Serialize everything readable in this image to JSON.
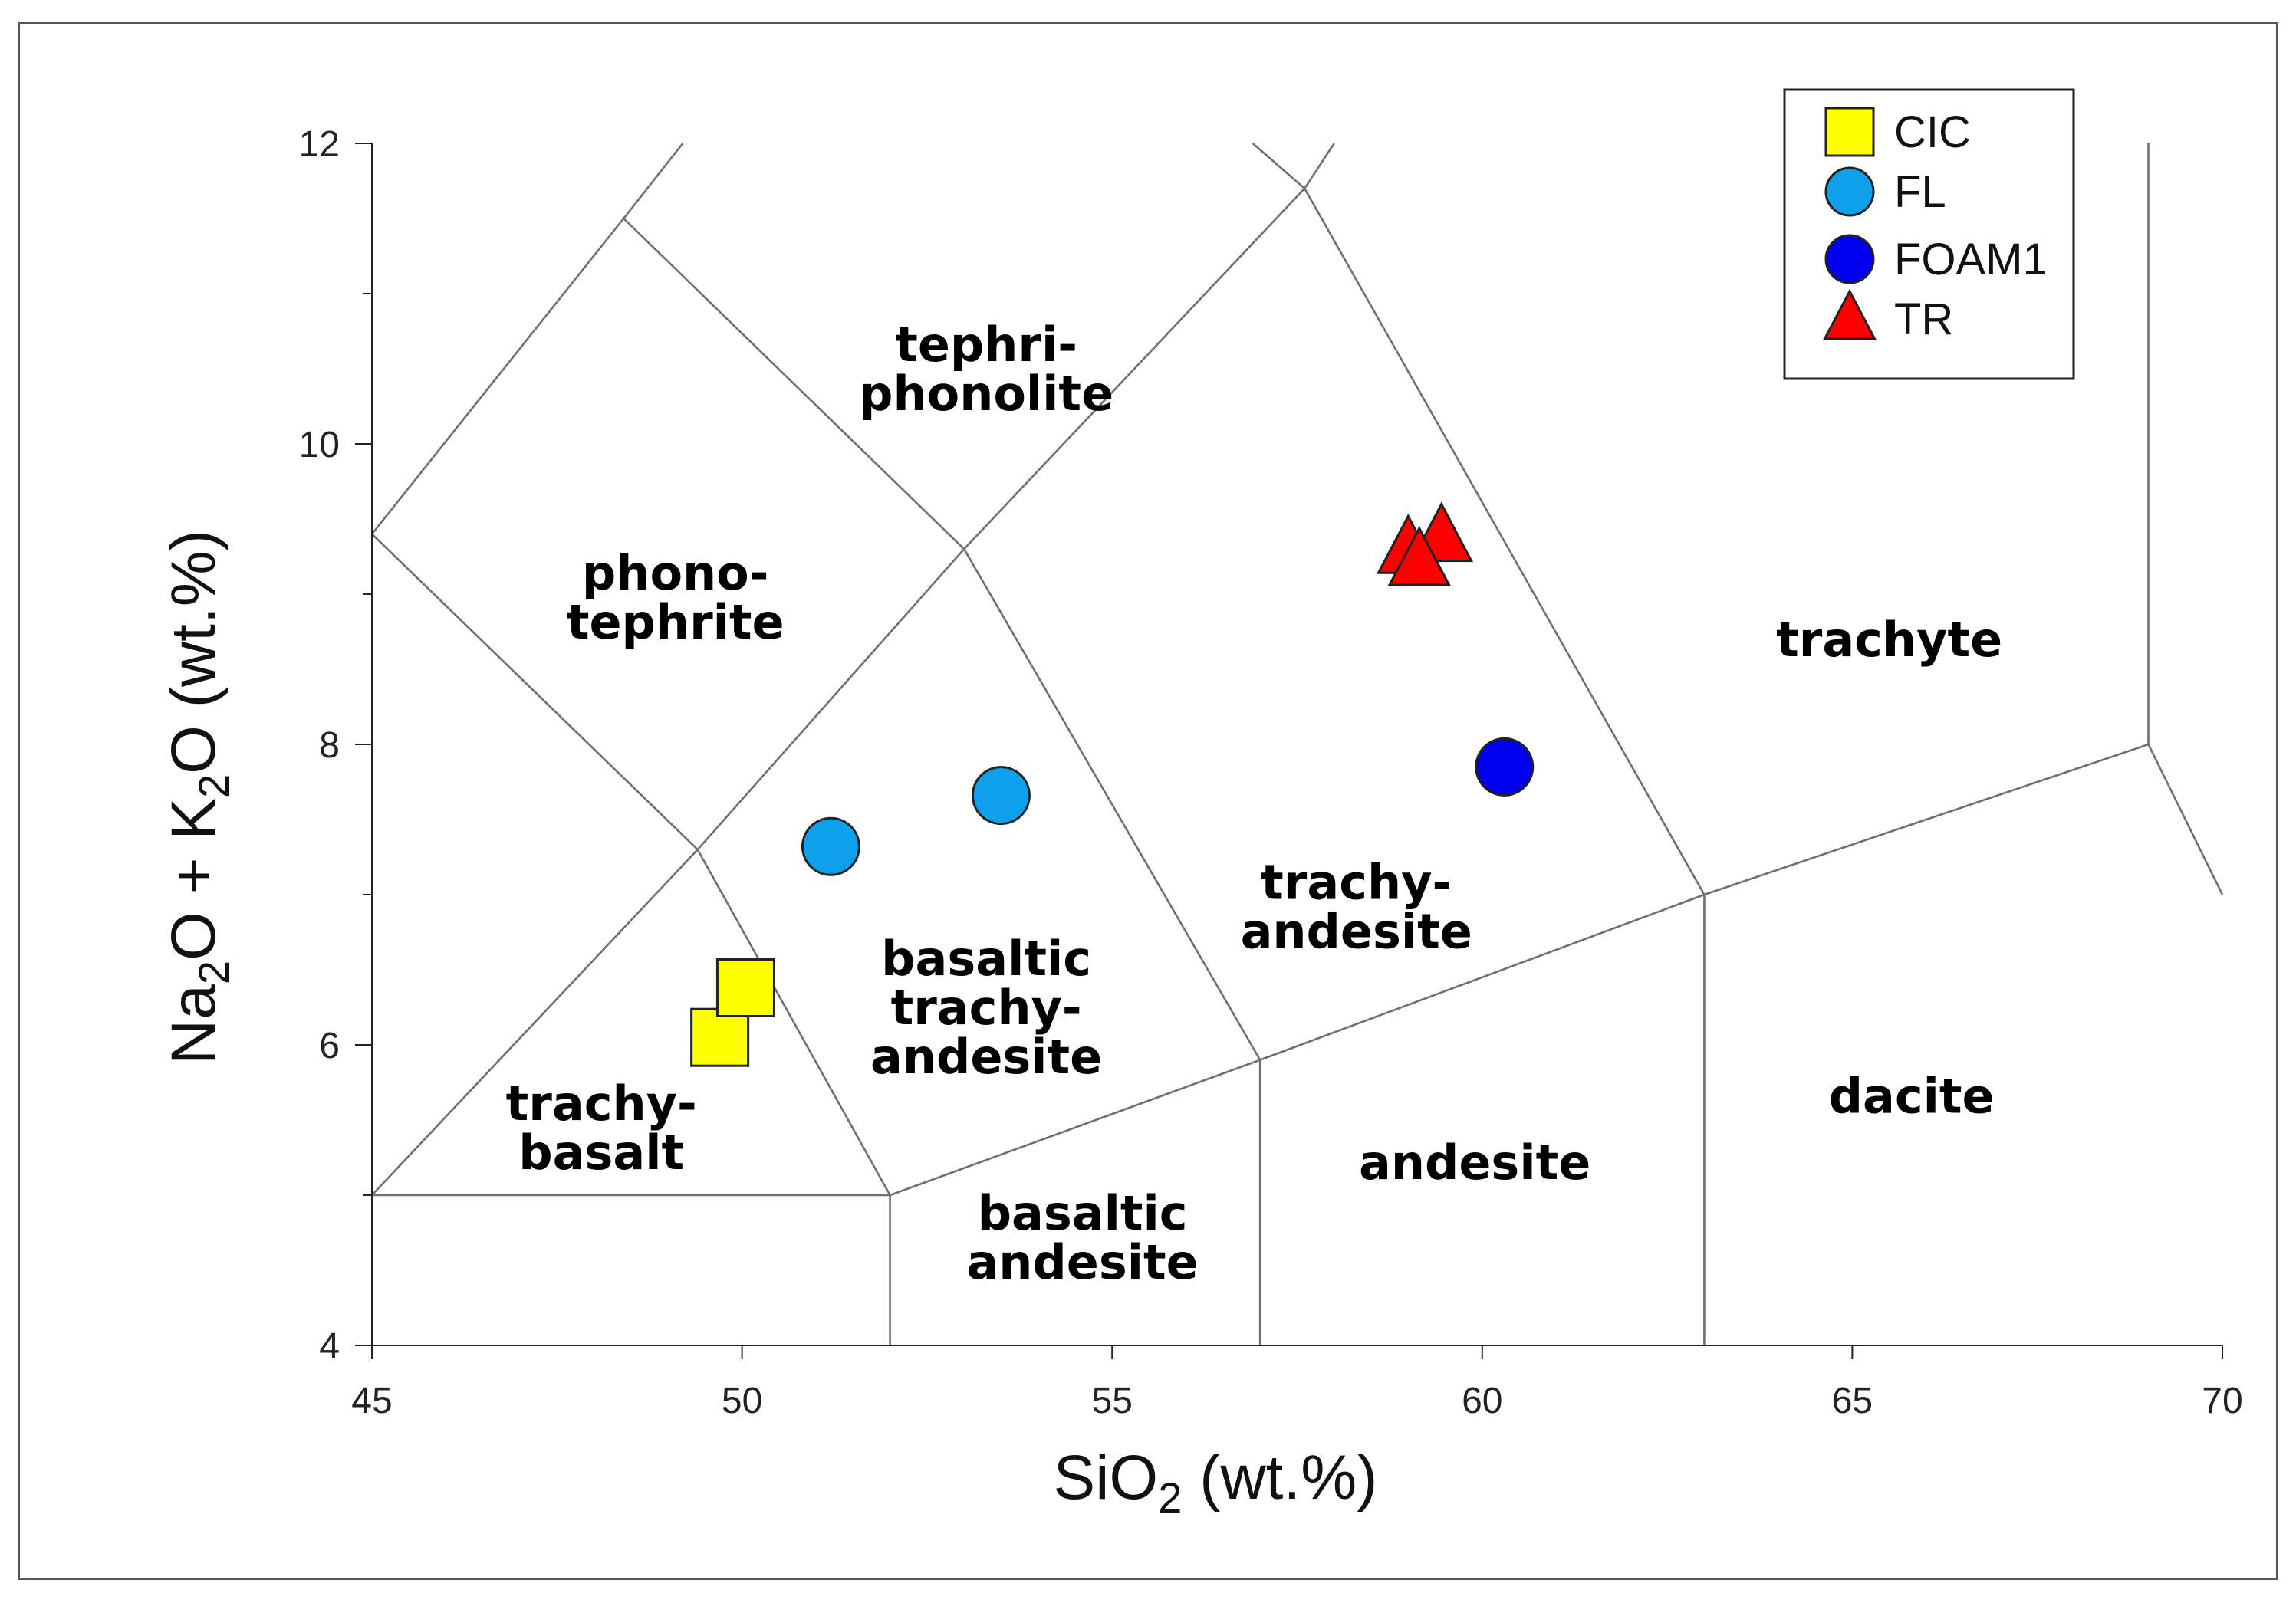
{
  "chart_data": {
    "type": "scatter",
    "title": "",
    "xlabel": {
      "base": "SiO",
      "sub": "2",
      "rest": " (wt.%)"
    },
    "ylabel": {
      "p1": "Na",
      "s1": "2",
      "p2": "O + K",
      "s2": "2",
      "p3": "O (wt.%)"
    },
    "xlim": [
      45,
      70
    ],
    "ylim": [
      4,
      12
    ],
    "xticks": [
      45,
      50,
      55,
      60,
      65,
      70
    ],
    "yticks_labeled": [
      4,
      6,
      8,
      10,
      12
    ],
    "yticks_minor": [
      5,
      7,
      9,
      11
    ],
    "legend_position": "top-right",
    "grid": false,
    "series": [
      {
        "name": "CIC",
        "marker": "square",
        "color": "#ffff00",
        "points": [
          [
            49.7,
            6.05
          ],
          [
            50.05,
            6.38
          ]
        ]
      },
      {
        "name": "FL",
        "marker": "circle",
        "color": "#0fa0eb",
        "points": [
          [
            51.2,
            7.32
          ],
          [
            53.5,
            7.66
          ]
        ]
      },
      {
        "name": "FOAM1",
        "marker": "circle",
        "color": "#0000ee",
        "points": [
          [
            60.3,
            7.85
          ]
        ]
      },
      {
        "name": "TR",
        "marker": "triangle",
        "color": "#ff0000",
        "points": [
          [
            59.0,
            9.3
          ],
          [
            59.45,
            9.38
          ],
          [
            59.15,
            9.22
          ]
        ]
      }
    ],
    "field_boundaries": [
      [
        [
          45,
          5
        ],
        [
          52,
          5
        ]
      ],
      [
        [
          45,
          5
        ],
        [
          49.4,
          7.3
        ]
      ],
      [
        [
          49.4,
          7.3
        ],
        [
          52,
          5
        ]
      ],
      [
        [
          52,
          5
        ],
        [
          57,
          5.9
        ]
      ],
      [
        [
          57,
          5.9
        ],
        [
          63,
          7
        ]
      ],
      [
        [
          63,
          7
        ],
        [
          69,
          8
        ]
      ],
      [
        [
          69,
          8
        ],
        [
          70,
          7
        ]
      ],
      [
        [
          69,
          8
        ],
        [
          69,
          12
        ]
      ],
      [
        [
          52,
          4
        ],
        [
          52,
          5
        ]
      ],
      [
        [
          57,
          4
        ],
        [
          57,
          5.9
        ]
      ],
      [
        [
          63,
          4
        ],
        [
          63,
          7
        ]
      ],
      [
        [
          49.4,
          7.3
        ],
        [
          53,
          9.3
        ]
      ],
      [
        [
          53,
          9.3
        ],
        [
          57,
          5.9
        ]
      ],
      [
        [
          53,
          9.3
        ],
        [
          57.6,
          11.7
        ]
      ],
      [
        [
          57.6,
          11.7
        ],
        [
          63,
          7
        ]
      ],
      [
        [
          57.6,
          11.7
        ],
        [
          58.0,
          12
        ]
      ],
      [
        [
          57.6,
          11.7
        ],
        [
          56.9,
          12
        ]
      ],
      [
        [
          53,
          9.3
        ],
        [
          48.4,
          11.5
        ]
      ],
      [
        [
          48.4,
          11.5
        ],
        [
          45,
          9.4
        ]
      ],
      [
        [
          48.4,
          11.5
        ],
        [
          49.2,
          12
        ]
      ],
      [
        [
          45,
          9.4
        ],
        [
          49.4,
          7.3
        ]
      ]
    ],
    "field_labels": [
      {
        "lines": [
          "tephri-",
          "phonolite"
        ],
        "x": 53.3,
        "y": 10.5
      },
      {
        "lines": [
          "phono-",
          "tephrite"
        ],
        "x": 49.1,
        "y": 8.98
      },
      {
        "lines": [
          "trachy-",
          "andesite"
        ],
        "x": 58.3,
        "y": 6.92
      },
      {
        "lines": [
          "basaltic",
          "trachy-",
          "andesite"
        ],
        "x": 53.3,
        "y": 6.25
      },
      {
        "lines": [
          "trachy-",
          "basalt"
        ],
        "x": 48.1,
        "y": 5.45
      },
      {
        "lines": [
          "basaltic",
          "andesite"
        ],
        "x": 54.6,
        "y": 4.72
      },
      {
        "lines": [
          "andesite"
        ],
        "x": 59.9,
        "y": 5.22
      },
      {
        "lines": [
          "dacite"
        ],
        "x": 65.8,
        "y": 5.66
      },
      {
        "lines": [
          "trachyte"
        ],
        "x": 65.5,
        "y": 8.7
      }
    ]
  }
}
